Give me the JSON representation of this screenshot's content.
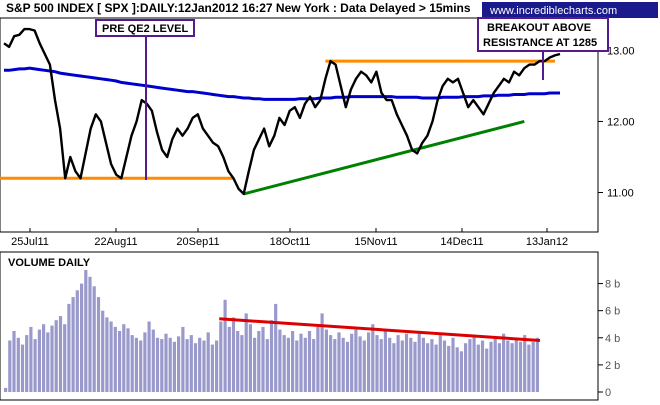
{
  "header": {
    "title": "S&P 500 INDEX [ SPX ]:DAILY:12Jan2012 16:27 New York  : Data Delayed > 15mins",
    "url": "www.incrediblecharts.com"
  },
  "annotations": {
    "pre_qe2": "PRE QE2 LEVEL",
    "breakout_line1": "BREAKOUT ABOVE",
    "breakout_line2": "RESISTANCE AT 1285"
  },
  "volume_panel": {
    "label": "VOLUME DAILY"
  },
  "colors": {
    "price": "#000000",
    "ma": "#0000cc",
    "support": "#ff8c00",
    "trend": "#008000",
    "vol_bar": "#9999cc",
    "vol_trend": "#dd0000",
    "annotation_border": "#551a8b",
    "url_bg": "#1a1a8c"
  },
  "chart_data": [
    {
      "type": "line",
      "x_labels": [
        "25Jul11",
        "22Aug11",
        "20Sep11",
        "18Oct11",
        "15Nov11",
        "14Dec11",
        "13Jan12"
      ],
      "y_ticks": [
        "11.00",
        "12.00",
        "13.00"
      ],
      "ylim": [
        10.5,
        13.4
      ],
      "series": [
        {
          "values": [
            13.1,
            13.05,
            13.2,
            13.22,
            13.3,
            13.3,
            13.28,
            13.1,
            12.95,
            12.8,
            12.3,
            11.9,
            11.2,
            11.5,
            11.3,
            11.2,
            11.55,
            11.9,
            12.1,
            12.0,
            11.7,
            11.4,
            11.25,
            11.2,
            11.5,
            11.8,
            12.0,
            12.3,
            12.25,
            12.15,
            11.85,
            11.6,
            11.5,
            11.75,
            11.9,
            11.8,
            11.9,
            12.05,
            12.1,
            11.9,
            11.8,
            11.7,
            11.65,
            11.5,
            11.3,
            11.2,
            11.05,
            10.98,
            11.3,
            11.6,
            11.75,
            11.9,
            11.65,
            11.8,
            12.05,
            11.95,
            12.15,
            12.2,
            12.05,
            12.25,
            12.35,
            12.2,
            12.3,
            12.6,
            12.85,
            12.8,
            12.5,
            12.2,
            12.45,
            12.6,
            12.7,
            12.65,
            12.55,
            12.7,
            12.4,
            12.3,
            12.3,
            12.1,
            11.95,
            11.8,
            11.6,
            11.55,
            11.7,
            11.8,
            12.0,
            12.3,
            12.5,
            12.6,
            12.55,
            12.6,
            12.4,
            12.2,
            12.3,
            12.2,
            12.1,
            12.25,
            12.4,
            12.5,
            12.6,
            12.55,
            12.7,
            12.65,
            12.75,
            12.8,
            12.8,
            12.85,
            12.85,
            12.9,
            12.93,
            12.95
          ]
        },
        {
          "values": [
            12.72,
            12.72,
            12.73,
            12.74,
            12.74,
            12.75,
            12.74,
            12.73,
            12.72,
            12.71,
            12.7,
            12.68,
            12.67,
            12.66,
            12.65,
            12.64,
            12.63,
            12.62,
            12.61,
            12.6,
            12.59,
            12.58,
            12.57,
            12.55,
            12.54,
            12.53,
            12.52,
            12.51,
            12.5,
            12.49,
            12.48,
            12.47,
            12.46,
            12.45,
            12.44,
            12.43,
            12.42,
            12.42,
            12.41,
            12.4,
            12.39,
            12.38,
            12.37,
            12.36,
            12.35,
            12.35,
            12.34,
            12.33,
            12.33,
            12.32,
            12.32,
            12.31,
            12.31,
            12.31,
            12.31,
            12.31,
            12.31,
            12.31,
            12.32,
            12.32,
            12.32,
            12.32,
            12.33,
            12.33,
            12.33,
            12.34,
            12.34,
            12.34,
            12.35,
            12.35,
            12.35,
            12.35,
            12.35,
            12.35,
            12.35,
            12.35,
            12.35,
            12.34,
            12.34,
            12.34,
            12.34,
            12.34,
            12.33,
            12.33,
            12.33,
            12.33,
            12.34,
            12.34,
            12.34,
            12.34,
            12.35,
            12.35,
            12.35,
            12.35,
            12.36,
            12.36,
            12.36,
            12.37,
            12.37,
            12.37,
            12.38,
            12.38,
            12.38,
            12.39,
            12.39,
            12.39,
            12.39,
            12.4,
            12.4,
            12.4
          ]
        }
      ],
      "lines": {
        "support": {
          "value": 11.2
        },
        "resistance": {
          "value": 12.85
        },
        "trend": {
          "start": 10.98,
          "end": 12.0
        }
      }
    },
    {
      "type": "bar",
      "y_ticks": [
        "0",
        "2 b",
        "4 b",
        "6 b",
        "8 b"
      ],
      "ylim": [
        0,
        9
      ],
      "values": [
        0.3,
        3.8,
        4.5,
        4.0,
        3.5,
        4.2,
        4.8,
        3.9,
        4.6,
        5.0,
        4.4,
        4.9,
        5.3,
        5.6,
        5.0,
        6.5,
        7.0,
        7.5,
        8.0,
        9.0,
        8.5,
        7.8,
        7.0,
        6.0,
        5.5,
        5.2,
        4.8,
        4.5,
        5.0,
        4.7,
        4.2,
        4.0,
        3.8,
        4.4,
        5.2,
        4.6,
        4.0,
        3.9,
        4.3,
        4.0,
        3.7,
        4.1,
        4.8,
        3.9,
        4.2,
        3.6,
        4.0,
        3.8,
        4.4,
        3.5,
        3.8,
        5.2,
        6.8,
        4.8,
        5.5,
        4.5,
        4.2,
        5.8,
        5.0,
        4.0,
        4.5,
        4.8,
        3.9,
        5.3,
        6.5,
        4.6,
        4.2,
        4.0,
        4.5,
        3.8,
        4.3,
        4.0,
        4.5,
        3.9,
        4.8,
        5.8,
        4.6,
        4.2,
        3.9,
        4.4,
        4.0,
        3.7,
        4.3,
        4.6,
        4.1,
        3.8,
        4.4,
        5.0,
        4.2,
        3.9,
        4.5,
        4.0,
        3.6,
        4.2,
        3.8,
        4.3,
        4.0,
        3.7,
        4.4,
        4.0,
        3.6,
        3.9,
        3.5,
        4.2,
        3.8,
        3.4,
        4.0,
        3.3,
        3.0,
        3.6,
        3.9,
        4.1,
        3.5,
        3.8,
        3.2,
        3.7,
        4.0,
        3.6,
        4.3,
        3.8,
        3.6,
        4.0,
        3.7,
        4.2,
        3.5,
        3.7,
        4.0
      ],
      "trend": {
        "start": 5.4,
        "end": 3.8
      }
    }
  ]
}
